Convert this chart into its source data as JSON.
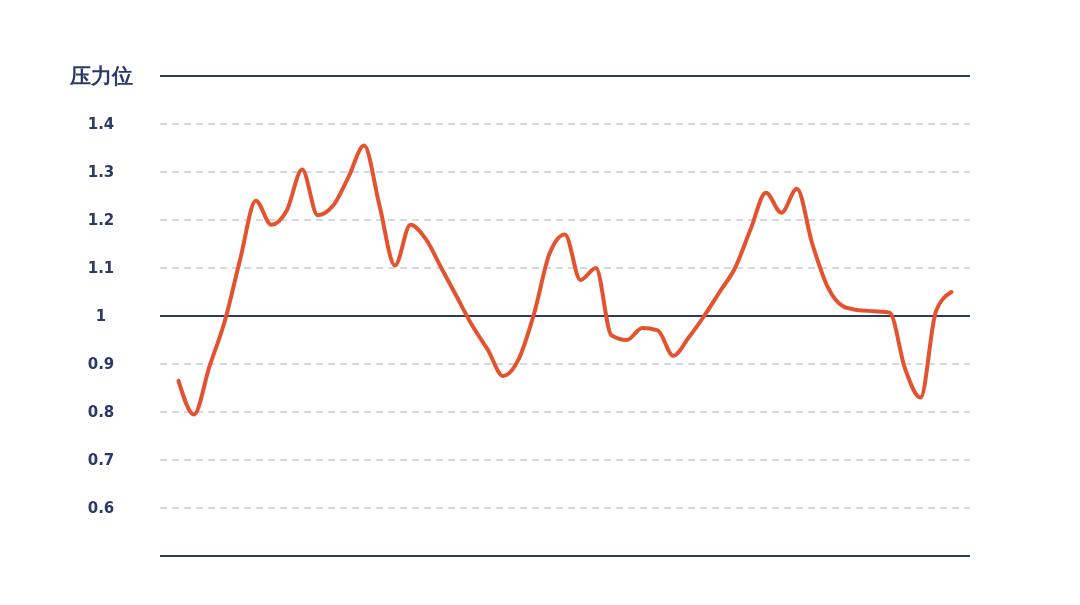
{
  "chart_data": {
    "type": "line",
    "ylabel": "压力位",
    "categories": [
      null,
      null,
      null,
      null,
      null,
      null,
      null,
      null,
      null,
      null,
      null,
      null,
      null,
      null,
      null,
      null,
      null,
      null,
      null,
      null,
      null,
      null,
      null,
      null,
      null,
      null,
      null,
      null,
      null,
      null,
      null,
      null,
      null,
      null,
      null,
      null,
      null,
      null,
      null,
      null,
      null,
      null,
      null,
      null,
      null,
      null,
      null,
      null,
      null,
      null,
      null
    ],
    "series": [
      {
        "color": "#e4532f",
        "values": [
          0.865,
          0.795,
          0.895,
          0.99,
          1.12,
          1.24,
          1.19,
          1.22,
          1.305,
          1.21,
          1.23,
          1.29,
          1.355,
          1.23,
          1.105,
          1.19,
          1.16,
          1.1,
          1.04,
          0.98,
          0.93,
          0.875,
          0.91,
          1.005,
          1.13,
          1.17,
          1.075,
          1.1,
          0.96,
          0.95,
          0.975,
          0.97,
          0.917,
          0.955,
          1.0,
          1.05,
          1.1,
          1.18,
          1.257,
          1.215,
          1.265,
          1.15,
          1.06,
          1.02,
          1.012,
          1.01,
          1.007,
          0.89,
          0.83,
          1.01,
          1.05
        ]
      }
    ],
    "ylim": [
      0.5,
      1.5
    ],
    "yticks": [
      {
        "value": 0.5,
        "label": null
      },
      0.6,
      0.7,
      0.8,
      0.9,
      1,
      1.1,
      1.2,
      1.3,
      1.4,
      {
        "value": 1.5,
        "label": null
      }
    ],
    "grid": "y",
    "marker": "none",
    "line_style": "solid",
    "ref_lines": [
      {
        "axis": "y",
        "value": 1,
        "color": "#2b3a67"
      }
    ]
  }
}
